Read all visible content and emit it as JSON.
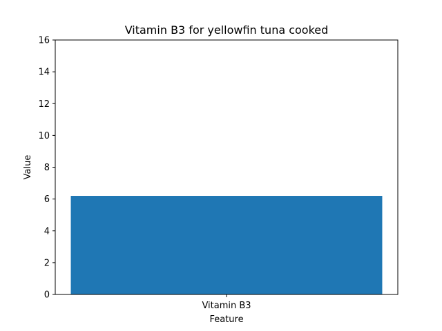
{
  "chart_data": {
    "type": "bar",
    "title": "Vitamin B3 for yellowfin tuna cooked",
    "xlabel": "Feature",
    "ylabel": "Value",
    "categories": [
      "Vitamin B3"
    ],
    "values": [
      6.2
    ],
    "ylim": [
      0,
      16
    ],
    "yticks": [
      0,
      2,
      4,
      6,
      8,
      10,
      12,
      14,
      16
    ],
    "grid": false,
    "bar_color": "#1f77b4"
  }
}
